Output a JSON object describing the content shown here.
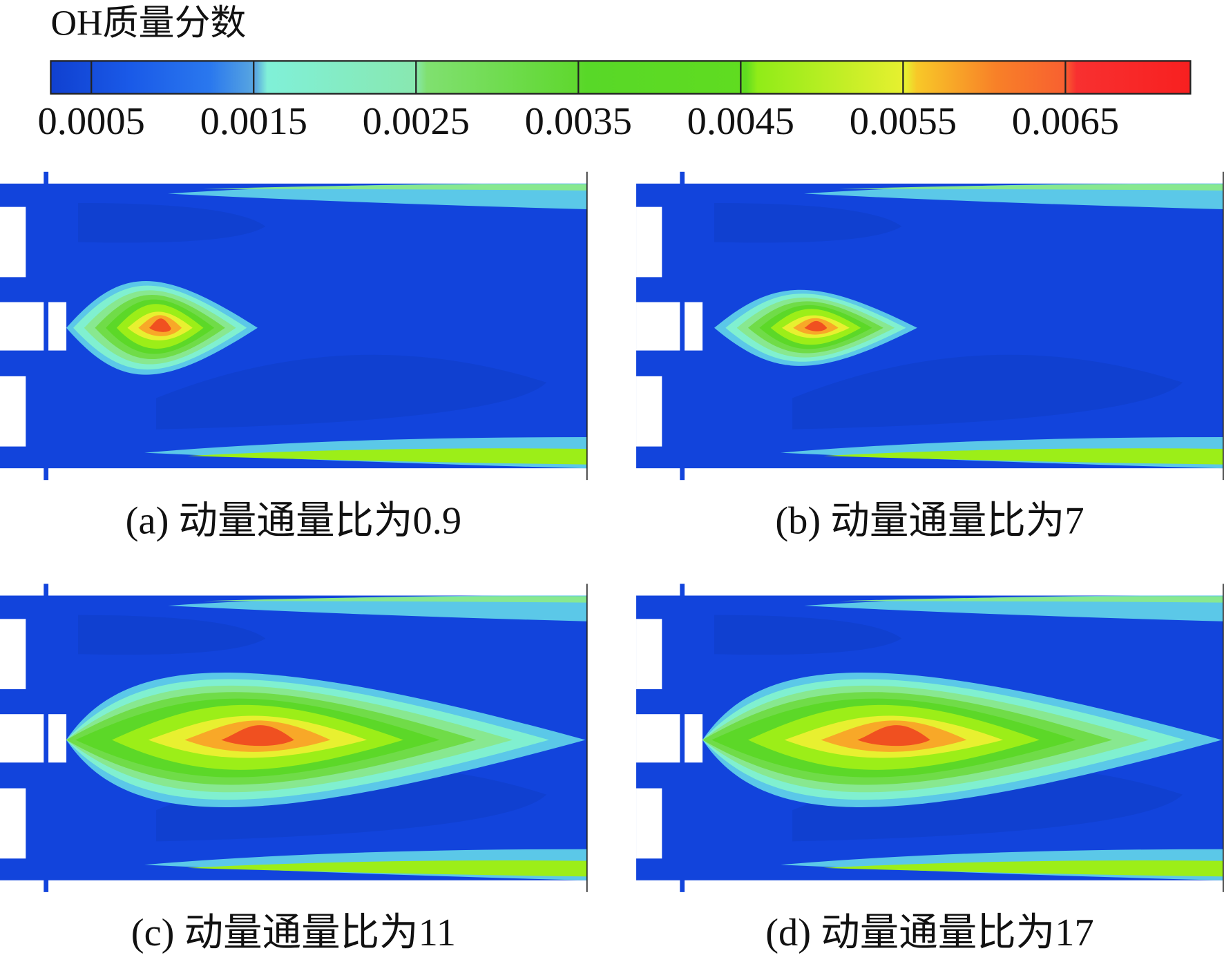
{
  "colorbar": {
    "title": "OH质量分数",
    "ticks": [
      0.0005,
      0.0015,
      0.0025,
      0.0035,
      0.0045,
      0.0055,
      0.0065
    ],
    "range": [
      0.00025,
      0.00727
    ]
  },
  "panels": [
    {
      "caption": "(a) 动量通量比为0.9"
    },
    {
      "caption": "(b) 动量通量比为7"
    },
    {
      "caption": "(c) 动量通量比为11"
    },
    {
      "caption": "(d) 动量通量比为17"
    }
  ]
}
